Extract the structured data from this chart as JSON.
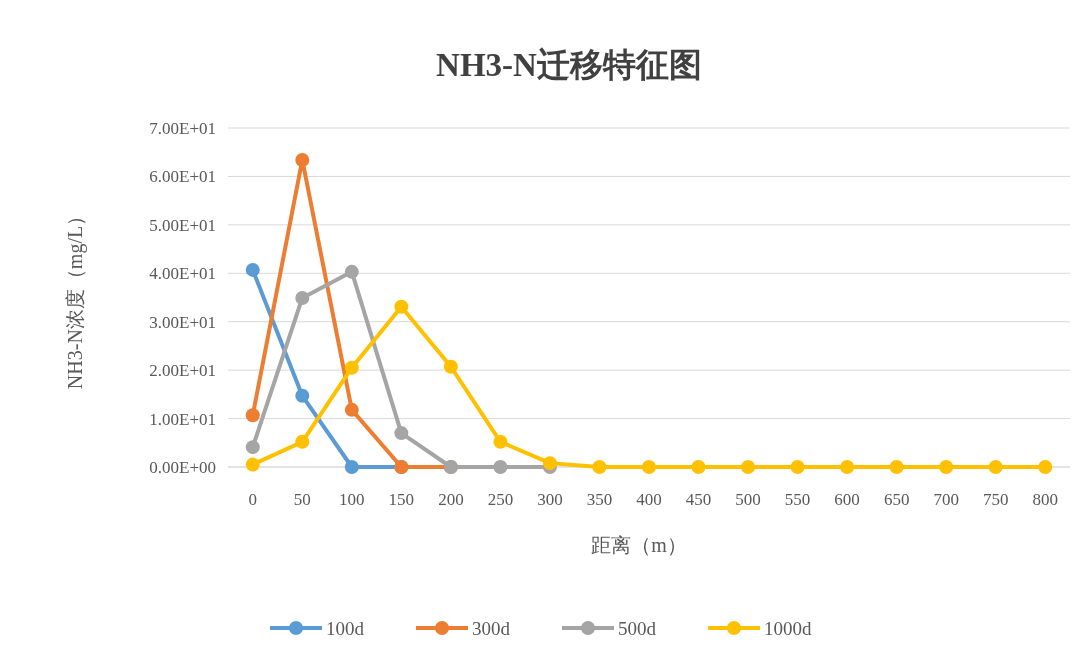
{
  "chart_data": {
    "type": "line",
    "title": "NH3-N迁移特征图",
    "xlabel": "距离（m）",
    "ylabel": "NH3-N浓度（mg/L）",
    "categories": [
      "0",
      "50",
      "100",
      "150",
      "200",
      "250",
      "300",
      "350",
      "400",
      "450",
      "500",
      "550",
      "600",
      "650",
      "700",
      "750",
      "800"
    ],
    "series": [
      {
        "name": "100d",
        "color": "#5b9bd5",
        "values": [
          40.7,
          14.7,
          0,
          0,
          null,
          null,
          null,
          null,
          null,
          null,
          null,
          null,
          null,
          null,
          null,
          null,
          null
        ]
      },
      {
        "name": "300d",
        "color": "#ed7d31",
        "values": [
          10.7,
          63.4,
          11.8,
          0,
          0,
          null,
          null,
          null,
          null,
          null,
          null,
          null,
          null,
          null,
          null,
          null,
          null
        ]
      },
      {
        "name": "500d",
        "color": "#a5a5a5",
        "values": [
          4.1,
          34.9,
          40.3,
          7.0,
          0,
          0,
          0,
          null,
          null,
          null,
          null,
          null,
          null,
          null,
          null,
          null,
          null
        ]
      },
      {
        "name": "1000d",
        "color": "#ffc000",
        "values": [
          0.5,
          5.2,
          20.5,
          33.1,
          20.7,
          5.2,
          0.8,
          0,
          0,
          0,
          0,
          0,
          0,
          0,
          0,
          0,
          0
        ]
      }
    ],
    "ylim": [
      0,
      70
    ],
    "yticks": [
      {
        "value": 0,
        "label": "0.00E+00"
      },
      {
        "value": 10,
        "label": "1.00E+01"
      },
      {
        "value": 20,
        "label": "2.00E+01"
      },
      {
        "value": 30,
        "label": "3.00E+01"
      },
      {
        "value": 40,
        "label": "4.00E+01"
      },
      {
        "value": 50,
        "label": "5.00E+01"
      },
      {
        "value": 60,
        "label": "6.00E+01"
      },
      {
        "value": 70,
        "label": "7.00E+01"
      }
    ],
    "grid": "y",
    "legend": "bottom",
    "marker": "circle",
    "line_style": "solid"
  }
}
